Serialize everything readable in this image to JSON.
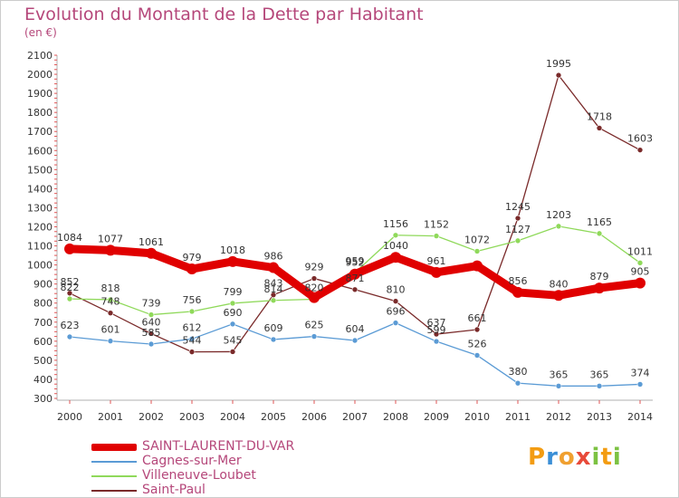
{
  "chart_data": {
    "type": "line",
    "title": "Evolution du Montant de la Dette par Habitant",
    "unit": "(en €)",
    "categories": [
      "2000",
      "2001",
      "2002",
      "2003",
      "2004",
      "2005",
      "2006",
      "2007",
      "2008",
      "2009",
      "2010",
      "2011",
      "2012",
      "2013",
      "2014"
    ],
    "ylim": [
      300,
      2100
    ],
    "yticks": [
      300,
      400,
      500,
      600,
      700,
      800,
      900,
      1000,
      1100,
      1200,
      1300,
      1400,
      1500,
      1600,
      1700,
      1800,
      1900,
      2000,
      2100
    ],
    "grid": false,
    "legend_position": "bottom-left",
    "series": [
      {
        "name": "SAINT-LAURENT-DU-VAR",
        "color": "#e00000",
        "values": [
          1084,
          1077,
          1061,
          979,
          1018,
          986,
          829,
          952,
          1040,
          961,
          995,
          856,
          840,
          879,
          905
        ],
        "labels": [
          "1084",
          "1077",
          "1061",
          "979",
          "1018",
          "986",
          "",
          "952",
          "1040",
          "961",
          "",
          "856",
          "840",
          "879",
          "905"
        ]
      },
      {
        "name": "Cagnes-sur-Mer",
        "color": "#5b9bd5",
        "values": [
          623,
          601,
          585,
          612,
          690,
          609,
          625,
          604,
          696,
          599,
          526,
          380,
          365,
          365,
          374
        ],
        "labels": [
          "623",
          "601",
          "585",
          "612",
          "690",
          "609",
          "625",
          "604",
          "696",
          "599",
          "526",
          "380",
          "365",
          "365",
          "374"
        ]
      },
      {
        "name": "Villeneuve-Loubet",
        "color": "#8fd95a",
        "values": [
          822,
          818,
          739,
          756,
          799,
          814,
          820,
          959,
          1156,
          1152,
          1072,
          1127,
          1203,
          1165,
          1011
        ],
        "labels": [
          "822",
          "818",
          "739",
          "756",
          "799",
          "814",
          "820",
          "959",
          "1156",
          "1152",
          "1072",
          "1127",
          "1203",
          "1165",
          "1011"
        ]
      },
      {
        "name": "Saint-Paul",
        "color": "#7a2a2a",
        "values": [
          852,
          748,
          640,
          544,
          545,
          843,
          929,
          871,
          810,
          637,
          661,
          1245,
          1995,
          1718,
          1603
        ],
        "labels": [
          "852",
          "748",
          "640",
          "544",
          "545",
          "843",
          "929",
          "871",
          "810",
          "637",
          "661",
          "1245",
          "1995",
          "1718",
          "1603"
        ]
      }
    ]
  },
  "legend": {
    "items": [
      "SAINT-LAURENT-DU-VAR",
      "Cagnes-sur-Mer",
      "Villeneuve-Loubet",
      "Saint-Paul"
    ]
  },
  "logo": {
    "text": "Proxiti",
    "letters": [
      "P",
      "r",
      "o",
      "x",
      "i",
      "t",
      "i"
    ],
    "colors": [
      "#f39c12",
      "#3b8fd6",
      "#f0a030",
      "#e84a3a",
      "#7cc242",
      "#f39c12",
      "#7cc242"
    ]
  }
}
